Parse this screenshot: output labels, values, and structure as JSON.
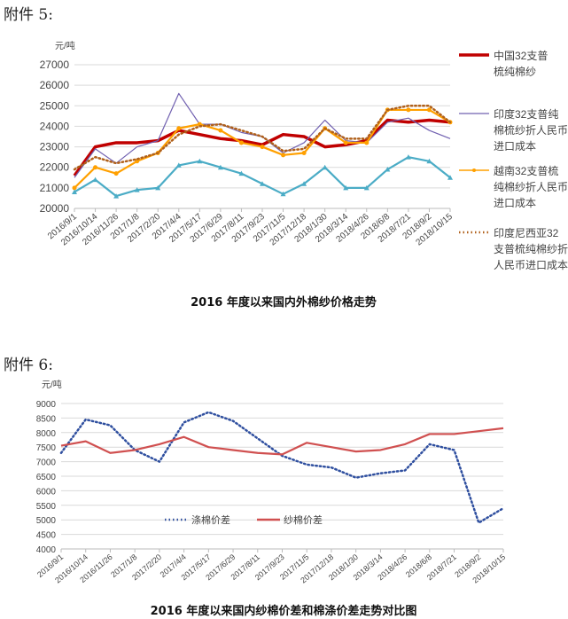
{
  "heading5": "附件 5:",
  "heading6": "附件 6:",
  "chart_data": [
    {
      "type": "line",
      "title": "2016 年度以来国内外棉纱价格走势",
      "ylabel": "元/吨",
      "ylim": [
        20000,
        27000
      ],
      "yticks": [
        20000,
        21000,
        22000,
        23000,
        24000,
        25000,
        26000,
        27000
      ],
      "grid": true,
      "legend": "right",
      "categories": [
        "2016/9/1",
        "2016/10/14",
        "2016/11/26",
        "2017/1/8",
        "2017/2/20",
        "2017/4/4",
        "2017/5/17",
        "2017/6/29",
        "2017/8/11",
        "2017/9/23",
        "2017/11/5",
        "2017/12/18",
        "2018/1/30",
        "2018/3/14",
        "2018/4/26",
        "2018/6/8",
        "2018/7/21",
        "2018/9/2",
        "2018/10/15"
      ],
      "series": [
        {
          "name": "中国32支普梳纯棉纱",
          "color": "#c00000",
          "style": "solid-thick",
          "values": [
            21600,
            23000,
            23200,
            23200,
            23300,
            23800,
            23600,
            23400,
            23300,
            23100,
            23600,
            23500,
            23000,
            23100,
            23300,
            24300,
            24200,
            24300,
            24200
          ]
        },
        {
          "name": "印度32支普纯棉梳纱折人民币进口成本",
          "color": "#7060b0",
          "style": "solid-thin",
          "values": [
            21500,
            22900,
            22200,
            23000,
            23300,
            25600,
            24100,
            24100,
            23700,
            23500,
            22700,
            23200,
            24300,
            23300,
            23200,
            24200,
            24400,
            23800,
            23400
          ]
        },
        {
          "name": "越南32支普梳纯棉纱折人民币进口成本",
          "color": "#ffa000",
          "style": "marker-dot",
          "values": [
            21000,
            22000,
            21700,
            22300,
            22700,
            23900,
            24100,
            23800,
            23200,
            23000,
            22600,
            22700,
            23900,
            23200,
            23200,
            24800,
            24800,
            24800,
            24200
          ]
        },
        {
          "name": "印度尼西亚32支普梳纯棉纱折人民币进口成本",
          "color": "#b0601a",
          "style": "dotted",
          "values": [
            21900,
            22500,
            22200,
            22400,
            22700,
            23600,
            24000,
            24100,
            23800,
            23500,
            22800,
            22900,
            23900,
            23400,
            23400,
            24800,
            25000,
            25000,
            24200
          ]
        },
        {
          "color": "#4bacc6",
          "style": "marker-triangle",
          "values": [
            20800,
            21400,
            20600,
            20900,
            21000,
            22100,
            22300,
            22000,
            21700,
            21200,
            20700,
            21200,
            22000,
            21000,
            21000,
            21900,
            22500,
            22300,
            21500
          ]
        }
      ]
    },
    {
      "type": "line",
      "title": "2016 年度以来国内纱棉价差和棉涤价差走势对比图",
      "ylabel": "元/吨",
      "ylim": [
        4000,
        9000
      ],
      "yticks": [
        4000,
        4500,
        5000,
        5500,
        6000,
        6500,
        7000,
        7500,
        8000,
        8500,
        9000
      ],
      "grid": true,
      "legend": "inside-bottom-left",
      "categories": [
        "2016/9/1",
        "2016/10/14",
        "2016/11/26",
        "2017/1/8",
        "2017/2/20",
        "2017/4/4",
        "2017/5/17",
        "2017/6/29",
        "2017/8/11",
        "2017/9/23",
        "2017/11/5",
        "2017/12/18",
        "2018/1/30",
        "2018/3/14",
        "2018/4/26",
        "2018/6/8",
        "2018/7/21",
        "2018/9/2",
        "2018/10/15"
      ],
      "series": [
        {
          "name": "涤棉价差",
          "color": "#2f4f9f",
          "style": "dotted",
          "values": [
            7300,
            8450,
            8250,
            7400,
            7000,
            8350,
            8700,
            8400,
            7800,
            7200,
            6900,
            6800,
            6450,
            6600,
            6700,
            7600,
            7400,
            4900,
            5400
          ]
        },
        {
          "name": "纱棉价差",
          "color": "#d05050",
          "style": "solid",
          "values": [
            7550,
            7700,
            7300,
            7400,
            7600,
            7850,
            7500,
            7400,
            7300,
            7250,
            7650,
            7500,
            7350,
            7400,
            7600,
            7950,
            7950,
            8050,
            8150
          ]
        }
      ]
    }
  ]
}
